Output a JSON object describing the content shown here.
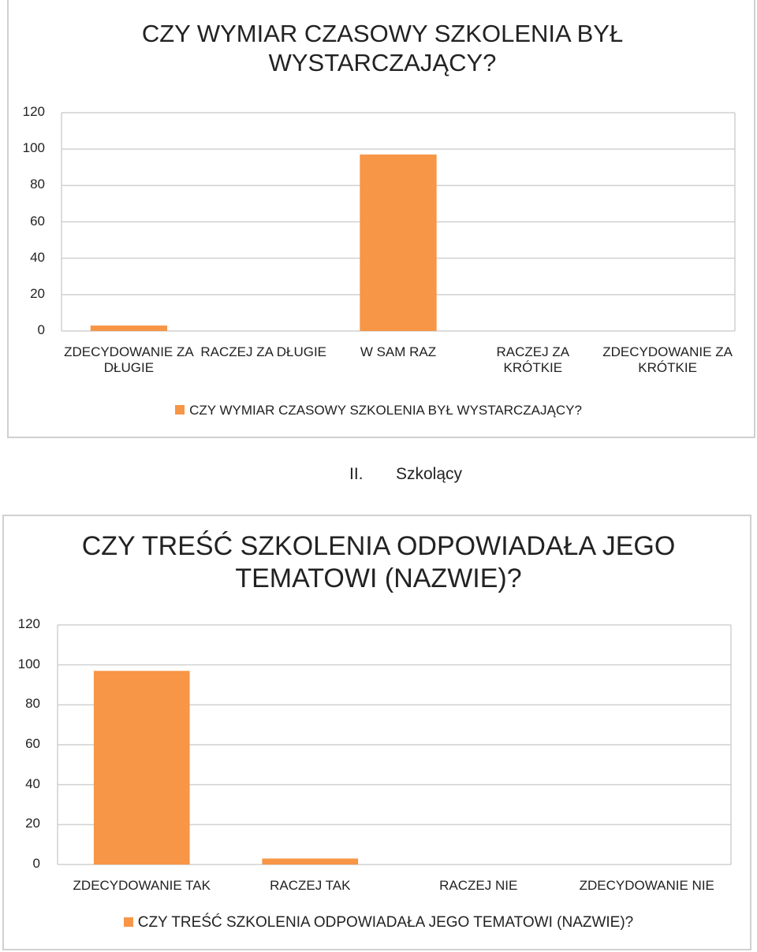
{
  "chart_data": [
    {
      "type": "bar",
      "title": "CZY WYMIAR CZASOWY SZKOLENIA BYŁ WYSTARCZAJĄCY?",
      "categories": [
        "ZDECYDOWANIE ZA DŁUGIE",
        "RACZEJ ZA DŁUGIE",
        "W SAM RAZ",
        "RACZEJ ZA KRÓTKIE",
        "ZDECYDOWANIE ZA KRÓTKIE"
      ],
      "series": [
        {
          "name": "CZY WYMIAR CZASOWY SZKOLENIA BYŁ WYSTARCZAJĄCY?",
          "color": "#f79646",
          "values": [
            3,
            0,
            97,
            0,
            0
          ]
        }
      ],
      "ylim": [
        0,
        120
      ],
      "yticks": [
        0,
        20,
        40,
        60,
        80,
        100,
        120
      ],
      "grid": true,
      "legend": "bottom"
    },
    {
      "type": "bar",
      "title": "CZY TREŚĆ SZKOLENIA ODPOWIADAŁA JEGO TEMATOWI (NAZWIE)?",
      "categories": [
        "ZDECYDOWANIE TAK",
        "RACZEJ TAK",
        "RACZEJ NIE",
        "ZDECYDOWANIE NIE"
      ],
      "series": [
        {
          "name": "CZY TREŚĆ SZKOLENIA ODPOWIADAŁA JEGO TEMATOWI (NAZWIE)?",
          "color": "#f79646",
          "values": [
            97,
            3,
            0,
            0
          ]
        }
      ],
      "ylim": [
        0,
        120
      ],
      "yticks": [
        0,
        20,
        40,
        60,
        80,
        100,
        120
      ],
      "grid": true,
      "legend": "bottom"
    }
  ],
  "section": {
    "number": "II.",
    "title": "Szkolący"
  }
}
